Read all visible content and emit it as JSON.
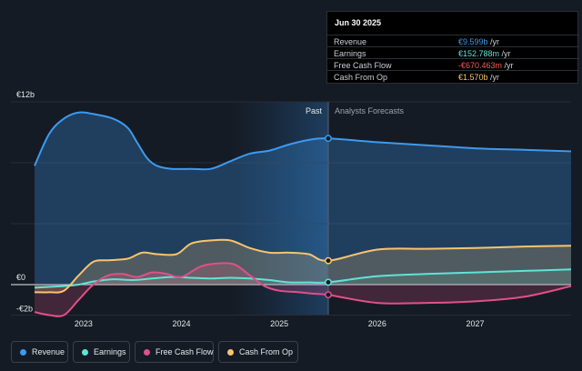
{
  "tooltip": {
    "date": "Jun 30 2025",
    "rows": [
      {
        "label": "Revenue",
        "value": "€9.599b",
        "unit": "/yr",
        "color": "#3d9af0"
      },
      {
        "label": "Earnings",
        "value": "€152.788m",
        "unit": "/yr",
        "color": "#5fe3d8"
      },
      {
        "label": "Free Cash Flow",
        "value": "-€670.463m",
        "unit": "/yr",
        "color": "#ff5a5a"
      },
      {
        "label": "Cash From Op",
        "value": "€1.570b",
        "unit": "/yr",
        "color": "#f7c46e"
      }
    ]
  },
  "legend": [
    {
      "label": "Revenue",
      "color": "#3d9af0"
    },
    {
      "label": "Earnings",
      "color": "#5fe3d8"
    },
    {
      "label": "Free Cash Flow",
      "color": "#e24f8a"
    },
    {
      "label": "Cash From Op",
      "color": "#f7c46e"
    }
  ],
  "chart_data": {
    "type": "area",
    "yticks": [
      "€12b",
      "€0",
      "-€2b"
    ],
    "ylim": [
      -2,
      12
    ],
    "xlim": [
      2022.5,
      2027.98
    ],
    "xticks": [
      {
        "label": "2023",
        "x": 2023.0
      },
      {
        "label": "2024",
        "x": 2024.0
      },
      {
        "label": "2025",
        "x": 2025.0
      },
      {
        "label": "2026",
        "x": 2026.0
      },
      {
        "label": "2027",
        "x": 2027.0
      }
    ],
    "past_label": "Past",
    "forecast_label": "Analysts Forecasts",
    "divider_x": 2025.5,
    "highlight_start_x": 2024.5,
    "series": [
      {
        "name": "Revenue",
        "color": "#3d9af0",
        "x": [
          2022.5,
          2022.65,
          2022.8,
          2022.95,
          2023.1,
          2023.3,
          2023.45,
          2023.55,
          2023.65,
          2023.75,
          2023.9,
          2024.1,
          2024.3,
          2024.5,
          2024.7,
          2024.9,
          2025.1,
          2025.3,
          2025.5,
          2026.0,
          2026.5,
          2027.0,
          2027.5,
          2027.98
        ],
        "y": [
          7.8,
          9.9,
          10.9,
          11.3,
          11.2,
          10.9,
          10.3,
          9.3,
          8.3,
          7.8,
          7.6,
          7.6,
          7.6,
          8.1,
          8.6,
          8.8,
          9.2,
          9.5,
          9.599,
          9.35,
          9.15,
          8.95,
          8.85,
          8.75
        ]
      },
      {
        "name": "Earnings",
        "color": "#5fe3d8",
        "x": [
          2022.5,
          2022.65,
          2022.8,
          2022.95,
          2023.1,
          2023.3,
          2023.5,
          2023.7,
          2023.9,
          2024.1,
          2024.3,
          2024.5,
          2024.7,
          2024.9,
          2025.1,
          2025.3,
          2025.5,
          2026.0,
          2026.5,
          2027.0,
          2027.5,
          2027.98
        ],
        "y": [
          -0.2,
          -0.15,
          -0.1,
          0.0,
          0.2,
          0.35,
          0.3,
          0.4,
          0.5,
          0.45,
          0.4,
          0.45,
          0.4,
          0.3,
          0.15,
          0.15,
          0.153,
          0.55,
          0.7,
          0.8,
          0.9,
          1.0
        ]
      },
      {
        "name": "Free Cash Flow",
        "color": "#e24f8a",
        "x": [
          2022.5,
          2022.65,
          2022.8,
          2022.95,
          2023.1,
          2023.25,
          2023.4,
          2023.55,
          2023.7,
          2023.85,
          2024.0,
          2024.2,
          2024.4,
          2024.55,
          2024.7,
          2024.85,
          2025.0,
          2025.2,
          2025.35,
          2025.5,
          2026.0,
          2026.5,
          2027.0,
          2027.5,
          2027.98
        ],
        "y": [
          -1.8,
          -2.0,
          -2.0,
          -1.0,
          0.0,
          0.6,
          0.7,
          0.5,
          0.8,
          0.7,
          0.5,
          1.2,
          1.4,
          1.3,
          0.6,
          -0.1,
          -0.4,
          -0.5,
          -0.6,
          -0.67,
          -1.2,
          -1.2,
          -1.1,
          -0.8,
          -0.1
        ]
      },
      {
        "name": "Cash From Op",
        "color": "#f7c46e",
        "x": [
          2022.5,
          2022.65,
          2022.8,
          2022.95,
          2023.1,
          2023.25,
          2023.45,
          2023.6,
          2023.75,
          2023.95,
          2024.1,
          2024.3,
          2024.5,
          2024.7,
          2024.9,
          2025.1,
          2025.3,
          2025.5,
          2026.0,
          2026.5,
          2027.0,
          2027.5,
          2027.98
        ],
        "y": [
          -0.5,
          -0.5,
          -0.4,
          0.6,
          1.5,
          1.6,
          1.7,
          2.1,
          2.0,
          2.0,
          2.7,
          2.9,
          2.9,
          2.4,
          2.1,
          2.1,
          2.0,
          1.57,
          2.3,
          2.35,
          2.4,
          2.5,
          2.55
        ]
      }
    ]
  }
}
